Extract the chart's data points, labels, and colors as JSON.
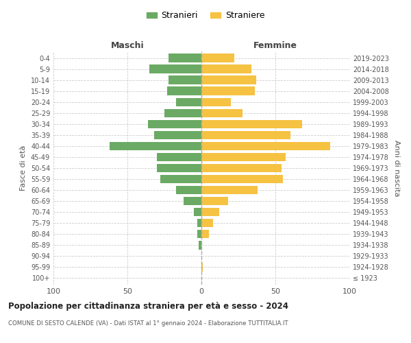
{
  "age_groups": [
    "100+",
    "95-99",
    "90-94",
    "85-89",
    "80-84",
    "75-79",
    "70-74",
    "65-69",
    "60-64",
    "55-59",
    "50-54",
    "45-49",
    "40-44",
    "35-39",
    "30-34",
    "25-29",
    "20-24",
    "15-19",
    "10-14",
    "5-9",
    "0-4"
  ],
  "birth_years": [
    "≤ 1923",
    "1924-1928",
    "1929-1933",
    "1934-1938",
    "1939-1943",
    "1944-1948",
    "1949-1953",
    "1954-1958",
    "1959-1963",
    "1964-1968",
    "1969-1973",
    "1974-1978",
    "1979-1983",
    "1984-1988",
    "1989-1993",
    "1994-1998",
    "1999-2003",
    "2004-2008",
    "2009-2013",
    "2014-2018",
    "2019-2023"
  ],
  "males": [
    0,
    0,
    0,
    2,
    3,
    3,
    5,
    12,
    17,
    28,
    30,
    30,
    62,
    32,
    36,
    25,
    17,
    23,
    22,
    35,
    22
  ],
  "females": [
    0,
    1,
    0,
    0,
    5,
    8,
    12,
    18,
    38,
    55,
    54,
    57,
    87,
    60,
    68,
    28,
    20,
    36,
    37,
    34,
    22
  ],
  "male_color": "#6aaa64",
  "female_color": "#f5c242",
  "background_color": "#ffffff",
  "grid_color": "#cccccc",
  "title": "Popolazione per cittadinanza straniera per età e sesso - 2024",
  "subtitle": "COMUNE DI SESTO CALENDE (VA) - Dati ISTAT al 1° gennaio 2024 - Elaborazione TUTTITALIA.IT",
  "xlabel_left": "Maschi",
  "xlabel_right": "Femmine",
  "ylabel_left": "Fasce di età",
  "ylabel_right": "Anni di nascita",
  "legend_stranieri": "Stranieri",
  "legend_straniere": "Straniere",
  "xlim": 100
}
